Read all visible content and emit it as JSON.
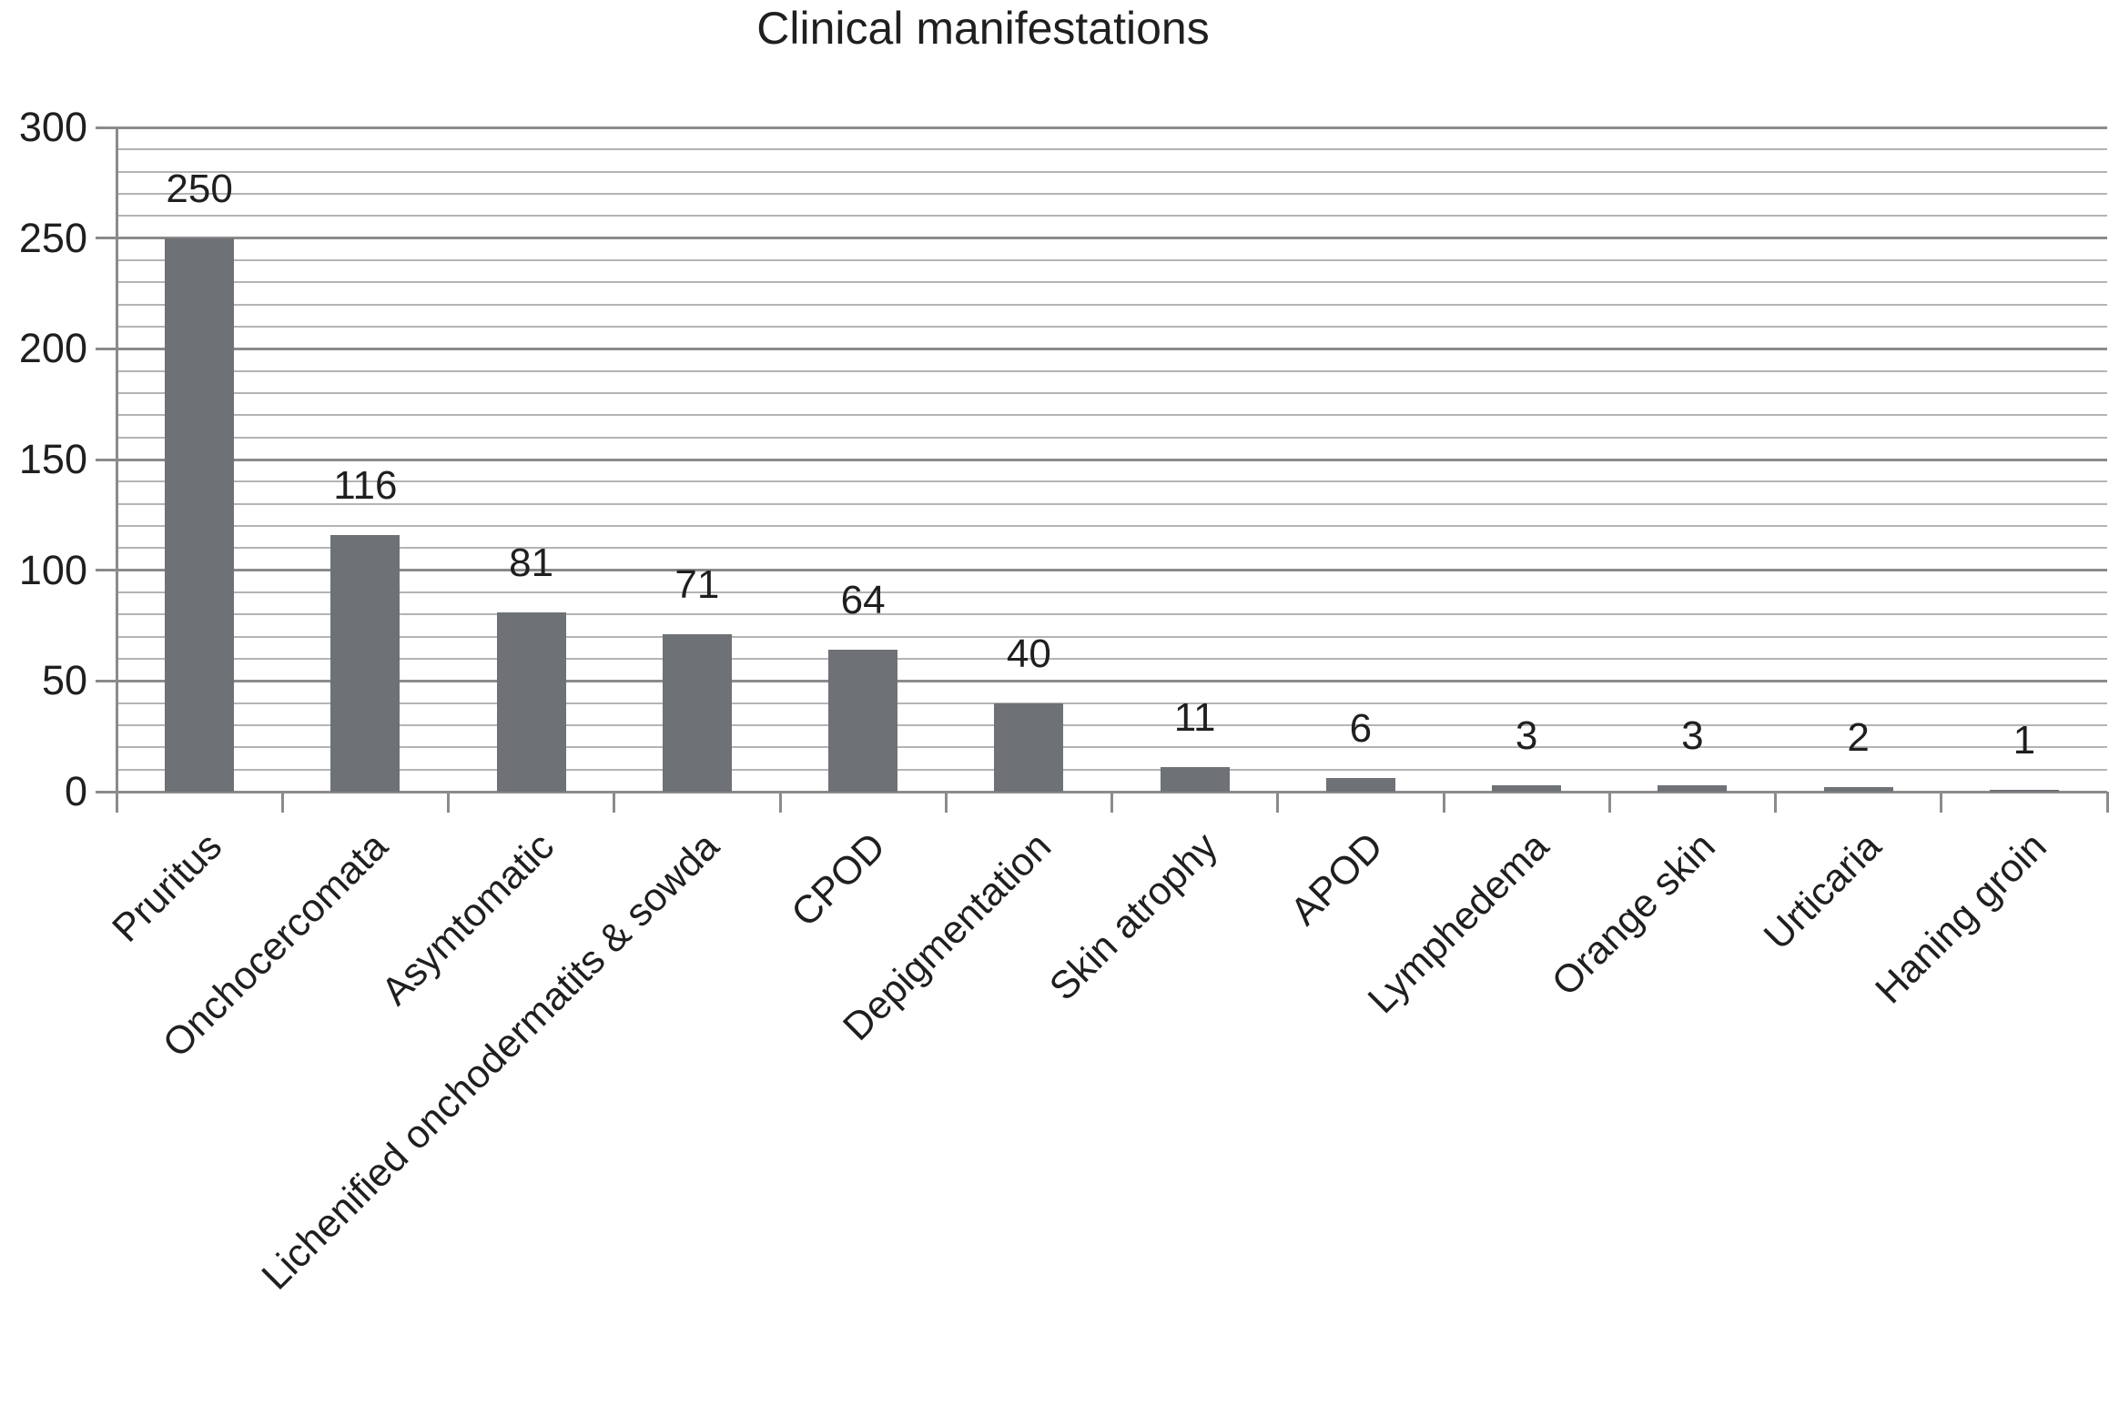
{
  "chart_data": {
    "type": "bar",
    "title": "Clinical manifestations",
    "categories": [
      "Pruritus",
      "Onchocercomata",
      "Asymtomatic",
      "Lichenified onchodermatits & sowda",
      "CPOD",
      "Depigmentation",
      "Skin atrophy",
      "APOD",
      "Lymphedema",
      "Orange skin",
      "Urticaria",
      "Haning groin"
    ],
    "values": [
      250,
      116,
      81,
      71,
      64,
      40,
      11,
      6,
      3,
      3,
      2,
      1
    ],
    "value_labels": [
      "250",
      "116",
      "81",
      "71",
      "64",
      "40",
      "11",
      "6",
      "3",
      "3",
      "2",
      "1"
    ],
    "xlabel": "",
    "ylabel": "",
    "ylim": [
      0,
      300
    ],
    "ytick_values": [
      0,
      50,
      100,
      150,
      200,
      250,
      300
    ],
    "ytick_labels": [
      "0",
      "50",
      "100",
      "150",
      "200",
      "250",
      "300"
    ],
    "major_gridline_interval": 50,
    "minor_gridline_interval": 10,
    "grid": "horizontal major and minor",
    "legend": "none",
    "data_labels": "above bars",
    "x_label_rotation_degrees": -45,
    "colors": {
      "bar": "#6e7175",
      "major_gridline": "#8b8b8b",
      "minor_gridline": "#b4b4b4",
      "text": "#1f1f1f",
      "background": "#ffffff"
    }
  }
}
